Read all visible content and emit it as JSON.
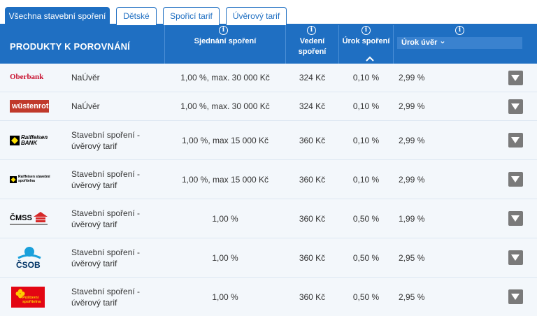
{
  "tabs": [
    {
      "label": "Všechna stavební spoření",
      "active": true
    },
    {
      "label": "Dětské",
      "active": false
    },
    {
      "label": "Spořicí tarif",
      "active": false
    },
    {
      "label": "Úvěrový tarif",
      "active": false
    }
  ],
  "header": {
    "title": "PRODUKTY K POROVNÁNÍ",
    "col_sjednani": "Sjednání spoření",
    "col_vedeni_1": "Vedení",
    "col_vedeni_2": "spoření",
    "col_urok_sporeni": "Úrok spoření",
    "col_urok_uver": "Úrok úvěr",
    "info_glyph": "i",
    "dropdown_chevron": "⌄"
  },
  "colors": {
    "primary": "#1f6fc2",
    "row_bg": "#f3f7fb",
    "expand_btn": "#7a7a7a"
  },
  "rows": [
    {
      "bank": "Oberbank",
      "product_1": "NaÚvěr",
      "product_2": "",
      "sjednani": "1,00 %, max. 30 000 Kč",
      "vedeni": "324 Kč",
      "urok_sporeni": "0,10 %",
      "urok_uver": "2,99 %"
    },
    {
      "bank": "wüstenrot",
      "product_1": "NaÚvěr",
      "product_2": "",
      "sjednani": "1,00 %, max. 30 000 Kč",
      "vedeni": "324 Kč",
      "urok_sporeni": "0,10 %",
      "urok_uver": "2,99 %"
    },
    {
      "bank": "Raiffeisen BANK",
      "product_1": "Stavební spoření -",
      "product_2": "úvěrový tarif",
      "sjednani": "1,00 %, max 15 000 Kč",
      "vedeni": "360 Kč",
      "urok_sporeni": "0,10 %",
      "urok_uver": "2,99 %"
    },
    {
      "bank": "Raiffeisen stavební spořitelna",
      "product_1": "Stavební spoření -",
      "product_2": "úvěrový tarif",
      "sjednani": "1,00 %, max 15 000 Kč",
      "vedeni": "360 Kč",
      "urok_sporeni": "0,10 %",
      "urok_uver": "2,99 %"
    },
    {
      "bank": "ČMSS",
      "product_1": "Stavební spoření -",
      "product_2": "úvěrový tarif",
      "sjednani": "1,00 %",
      "vedeni": "360 Kč",
      "urok_sporeni": "0,50 %",
      "urok_uver": "1,99 %"
    },
    {
      "bank": "ČSOB",
      "product_1": "Stavební spoření -",
      "product_2": "úvěrový tarif",
      "sjednani": "1,00 %",
      "vedeni": "360 Kč",
      "urok_sporeni": "0,50 %",
      "urok_uver": "2,95 %"
    },
    {
      "bank": "Poštovní spořitelna",
      "product_1": "Stavební spoření -",
      "product_2": "úvěrový tarif",
      "sjednani": "1,00 %",
      "vedeni": "360 Kč",
      "urok_sporeni": "0,50 %",
      "urok_uver": "2,95 %"
    }
  ]
}
